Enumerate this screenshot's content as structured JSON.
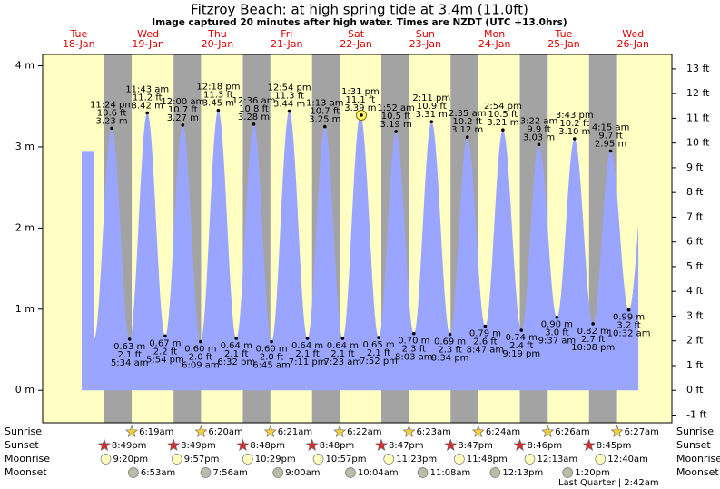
{
  "chart_data": {
    "type": "tide",
    "title": "Fitzroy Beach: at high  spring tide at 3.4m (11.0ft)",
    "subtitle": "Image captured 20 minutes after high water. Times are NZDT (UTC +13.0hrs)",
    "ylim": [
      -0.4,
      4.14
    ],
    "yticks": [
      {
        "value": 0,
        "label": "0 m"
      },
      {
        "value": 1,
        "label": "1 m"
      },
      {
        "value": 2,
        "label": "2 m"
      },
      {
        "value": 3,
        "label": "3 m"
      },
      {
        "value": 4,
        "label": "4 m"
      }
    ],
    "y2lim": [
      -1.312,
      13.583
    ],
    "y2ticks": [
      {
        "value": -1,
        "label": "-1 ft"
      },
      {
        "value": 0,
        "label": "0 ft"
      },
      {
        "value": 1,
        "label": "1 ft"
      },
      {
        "value": 2,
        "label": "2 ft"
      },
      {
        "value": 3,
        "label": "3 ft"
      },
      {
        "value": 4,
        "label": "4 ft"
      },
      {
        "value": 5,
        "label": "5 ft"
      },
      {
        "value": 6,
        "label": "6 ft"
      },
      {
        "value": 7,
        "label": "7 ft"
      },
      {
        "value": 8,
        "label": "8 ft"
      },
      {
        "value": 9,
        "label": "9 ft"
      },
      {
        "value": 10,
        "label": "10 ft"
      },
      {
        "value": 11,
        "label": "11 ft"
      },
      {
        "value": 12,
        "label": "12 ft"
      },
      {
        "value": 13,
        "label": "13 ft"
      }
    ],
    "color": "#9aa5ff",
    "row_labels": [
      "Sunrise",
      "Sunset",
      "Moonrise",
      "Moonset"
    ],
    "days": [
      {
        "name": "Tue",
        "date": "18-Jan",
        "tide_times": [
          "11:24 pm"
        ],
        "tide_values": [
          3.23
        ],
        "tide_value_labels": [
          "3.23 m"
        ],
        "tide_feet_labels": [
          "10.6 ft"
        ],
        "sunset": "8:49pm",
        "moonrise": "9:20pm"
      },
      {
        "name": "Wed",
        "date": "19-Jan",
        "tide_times": [
          "5:34 am",
          "11:43 am",
          "5:54 pm"
        ],
        "tide_values": [
          0.63,
          3.42,
          0.67
        ],
        "tide_value_labels": [
          "0.63 m",
          "3.42 m",
          "0.67 m"
        ],
        "tide_feet_labels": [
          "2.1 ft",
          "11.2 ft",
          "2.2 ft"
        ],
        "sunrise": "6:19am",
        "sunset": "8:49pm",
        "moonrise": "9:57pm",
        "moonset": "6:53am"
      },
      {
        "name": "Thu",
        "date": "20-Jan",
        "tide_times": [
          "12:00 am",
          "6:09 am",
          "12:18 pm",
          "6:32 pm"
        ],
        "tide_values": [
          3.27,
          0.6,
          3.45,
          0.64
        ],
        "tide_value_labels": [
          "3.27 m",
          "0.60 m",
          "3.45 m",
          "0.64 m"
        ],
        "tide_feet_labels": [
          "10.7 ft",
          "2.0 ft",
          "11.3 ft",
          "2.1 ft"
        ],
        "sunrise": "6:20am",
        "sunset": "8:48pm",
        "moonrise": "10:29pm",
        "moonset": "7:56am"
      },
      {
        "name": "Fri",
        "date": "21-Jan",
        "tide_times": [
          "12:36 am",
          "6:45 am",
          "12:54 pm",
          "7:11 pm"
        ],
        "tide_values": [
          3.28,
          0.6,
          3.44,
          0.64
        ],
        "tide_value_labels": [
          "3.28 m",
          "0.60 m",
          "3.44 m",
          "0.64 m"
        ],
        "tide_feet_labels": [
          "10.8 ft",
          "2.0 ft",
          "11.3 ft",
          "2.1 ft"
        ],
        "sunrise": "6:21am",
        "sunset": "8:48pm",
        "moonrise": "10:57pm",
        "moonset": "9:00am"
      },
      {
        "name": "Sat",
        "date": "22-Jan",
        "tide_times": [
          "1:13 am",
          "7:23 am",
          "1:31 pm",
          "7:52 pm"
        ],
        "tide_values": [
          3.25,
          0.64,
          3.39,
          0.65
        ],
        "tide_value_labels": [
          "3.25 m",
          "0.64 m",
          "3.39 m",
          "0.65 m"
        ],
        "tide_feet_labels": [
          "10.7 ft",
          "2.1 ft",
          "11.1 ft",
          "2.1 ft"
        ],
        "sunrise": "6:22am",
        "sunset": "8:47pm",
        "moonrise": "11:23pm",
        "moonset": "10:04am"
      },
      {
        "name": "Sun",
        "date": "23-Jan",
        "tide_times": [
          "1:52 am",
          "8:03 am",
          "2:11 pm",
          "8:34 pm"
        ],
        "tide_values": [
          3.19,
          0.7,
          3.31,
          0.69
        ],
        "tide_value_labels": [
          "3.19 m",
          "0.70 m",
          "3.31 m",
          "0.69 m"
        ],
        "tide_feet_labels": [
          "10.5 ft",
          "2.3 ft",
          "10.9 ft",
          "2.3 ft"
        ],
        "sunrise": "6:23am",
        "sunset": "8:47pm",
        "moonrise": "11:48pm",
        "moonset": "11:08am"
      },
      {
        "name": "Mon",
        "date": "24-Jan",
        "tide_times": [
          "2:35 am",
          "8:47 am",
          "2:54 pm",
          "9:19 pm"
        ],
        "tide_values": [
          3.12,
          0.79,
          3.21,
          0.74
        ],
        "tide_value_labels": [
          "3.12 m",
          "0.79 m",
          "3.21 m",
          "0.74 m"
        ],
        "tide_feet_labels": [
          "10.2 ft",
          "2.6 ft",
          "10.5 ft",
          "2.4 ft"
        ],
        "sunrise": "6:24am",
        "sunset": "8:46pm",
        "moonset": "12:13pm"
      },
      {
        "name": "Tue",
        "date": "25-Jan",
        "tide_times": [
          "3:22 am",
          "9:37 am",
          "3:43 pm",
          "10:08 pm"
        ],
        "tide_values": [
          3.03,
          0.9,
          3.1,
          0.82
        ],
        "tide_value_labels": [
          "3.03 m",
          "0.90 m",
          "3.10 m",
          "0.82 m"
        ],
        "tide_feet_labels": [
          "9.9 ft",
          "3.0 ft",
          "10.2 ft",
          "2.7 ft"
        ],
        "sunrise": "6:26am",
        "sunset": "8:45pm",
        "moonrise": "12:13am",
        "moonset": "1:20pm",
        "moon_phase": "Last Quarter | 2:42am"
      },
      {
        "name": "Wed",
        "date": "26-Jan",
        "tide_times": [
          "4:15 am",
          "10:32 am"
        ],
        "tide_values": [
          2.95,
          0.99
        ],
        "tide_value_labels": [
          "2.95 m",
          "0.99 m"
        ],
        "tide_feet_labels": [
          "9.7 ft",
          "3.2 ft"
        ],
        "sunrise": "6:27am",
        "moonrise": "12:40am"
      }
    ]
  }
}
